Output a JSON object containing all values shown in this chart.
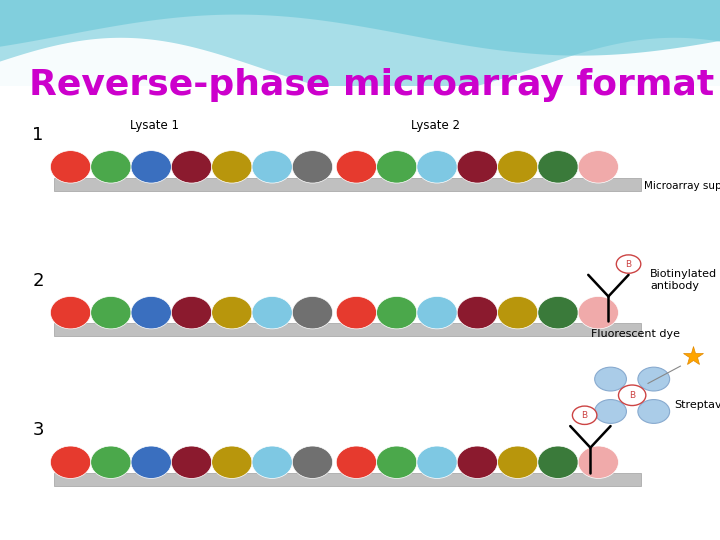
{
  "title": "Reverse-phase microarray format",
  "title_color": "#CC00CC",
  "title_fontsize": 26,
  "rows": [
    {
      "step": "1",
      "lysate1_label": "Lysate 1",
      "lysate2_label": "Lysate 2",
      "support_label": "Microarray support",
      "dots1": [
        "#E63A2E",
        "#4BA84B",
        "#3A6FBF",
        "#8B1A2E",
        "#B8960C",
        "#7EC8E3",
        "#707070"
      ],
      "dots2": [
        "#E63A2E",
        "#4BA84B",
        "#7EC8E3",
        "#8B1A2E",
        "#B8960C",
        "#3A7A3A",
        "#F0AAAA"
      ],
      "show_antibody": false,
      "show_streptavidin": false
    },
    {
      "step": "2",
      "lysate1_label": "",
      "lysate2_label": "",
      "support_label": "",
      "dots1": [
        "#E63A2E",
        "#4BA84B",
        "#3A6FBF",
        "#8B1A2E",
        "#B8960C",
        "#7EC8E3",
        "#707070"
      ],
      "dots2": [
        "#E63A2E",
        "#4BA84B",
        "#7EC8E3",
        "#8B1A2E",
        "#B8960C",
        "#3A7A3A",
        "#F0AAAA"
      ],
      "show_antibody": true,
      "show_streptavidin": false,
      "antibody_label": "Biotinylated\nantibody"
    },
    {
      "step": "3",
      "lysate1_label": "",
      "lysate2_label": "",
      "support_label": "",
      "dots1": [
        "#E63A2E",
        "#4BA84B",
        "#3A6FBF",
        "#8B1A2E",
        "#B8960C",
        "#7EC8E3",
        "#707070"
      ],
      "dots2": [
        "#E63A2E",
        "#4BA84B",
        "#7EC8E3",
        "#8B1A2E",
        "#B8960C",
        "#3A7A3A",
        "#F0AAAA"
      ],
      "show_antibody": false,
      "show_streptavidin": true,
      "fluorescent_label": "Fluorescent dye",
      "streptavidin_label": "Streptavidin"
    }
  ]
}
